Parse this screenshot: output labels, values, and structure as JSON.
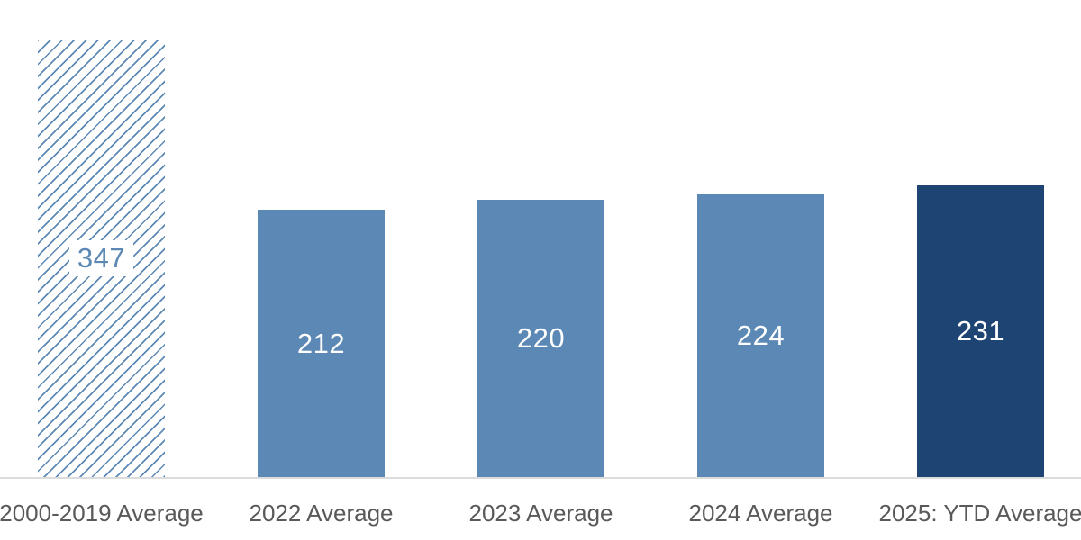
{
  "chart_data": {
    "type": "bar",
    "categories": [
      "2000-2019 Average",
      "2022 Average",
      "2023 Average",
      "2024 Average",
      "2025: YTD Average"
    ],
    "values": [
      347,
      212,
      220,
      224,
      231
    ],
    "title": "",
    "xlabel": "",
    "ylabel": "",
    "ylim": [
      0,
      360
    ],
    "grid": false,
    "legend": false,
    "bar_styles": [
      {
        "fill": "none",
        "pattern": "diagonal-hatch",
        "pattern_color": "#5B88B4",
        "value_label_color": "#5B88B4",
        "value_label_bg": "#FFFFFF"
      },
      {
        "fill": "#5B88B4",
        "value_label_color": "#FFFFFF"
      },
      {
        "fill": "#5B88B4",
        "value_label_color": "#FFFFFF"
      },
      {
        "fill": "#5B88B4",
        "value_label_color": "#FFFFFF"
      },
      {
        "fill": "#1D4473",
        "value_label_color": "#FFFFFF"
      }
    ],
    "colors": {
      "medium_blue": "#5B88B4",
      "dark_navy": "#1D4473",
      "axis_label_text": "#595959",
      "axis_line": "#DCDCDC",
      "background": "#FFFFFF"
    }
  }
}
